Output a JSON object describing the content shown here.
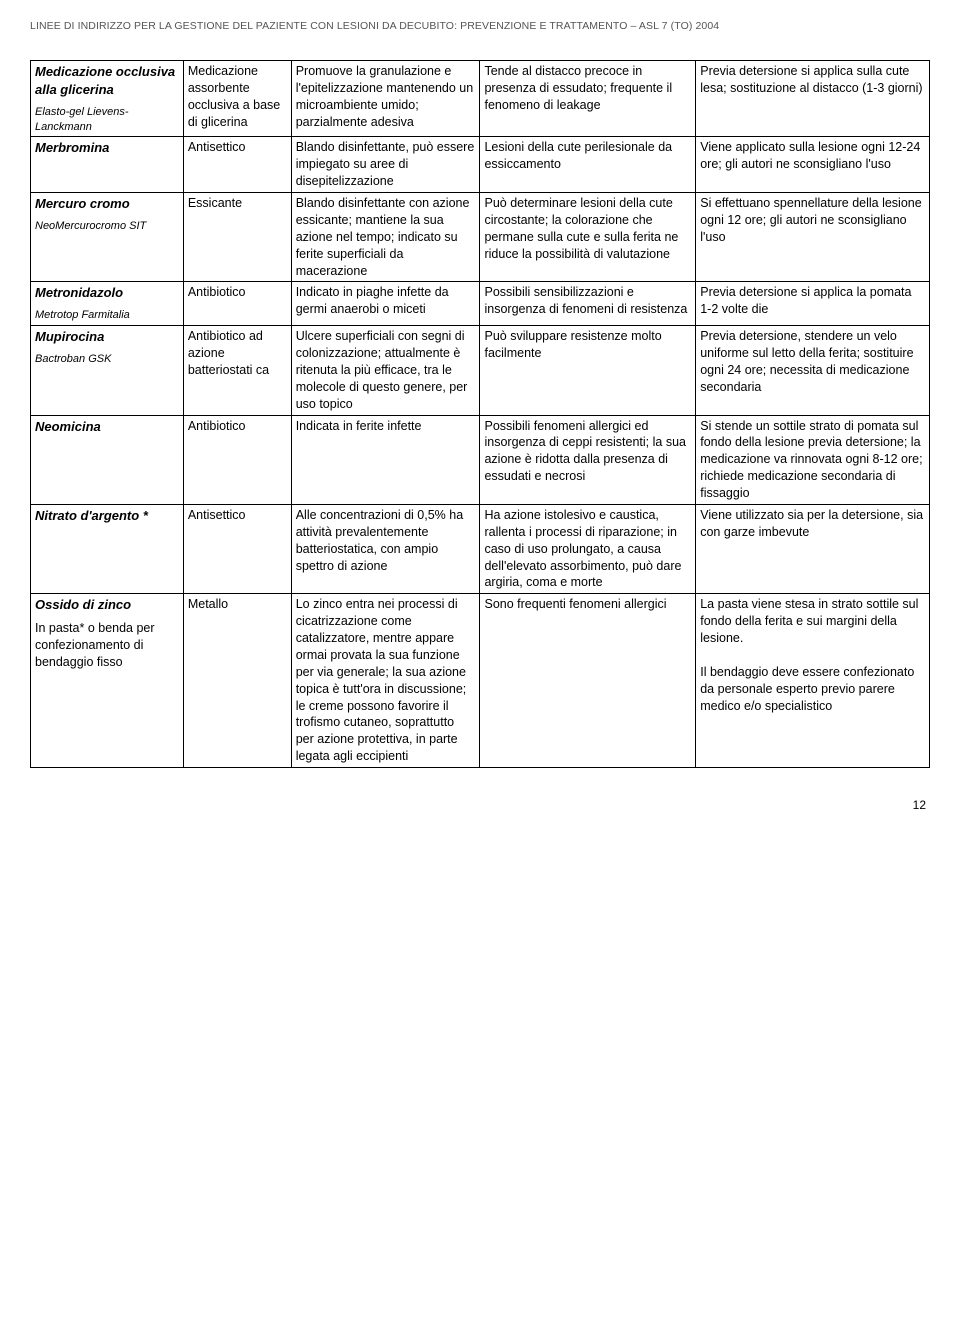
{
  "header": "LINEE DI INDIRIZZO PER LA GESTIONE DEL PAZIENTE CON LESIONI DA DECUBITO: PREVENZIONE E TRATTAMENTO – ASL 7 (TO) 2004",
  "page_number": "12",
  "colors": {
    "text": "#000000",
    "header_text": "#555555",
    "border": "#000000",
    "background": "#ffffff"
  },
  "typography": {
    "body_fontsize_pt": 12.5,
    "header_fontsize_pt": 10.5,
    "name_main_fontsize_pt": 13,
    "name_sub_fontsize_pt": 11,
    "line_height": 1.35
  },
  "layout": {
    "table_type": "table",
    "column_widths_pct": [
      17,
      12,
      21,
      24,
      26
    ]
  },
  "rows": [
    {
      "name_main": "Medicazione occlusiva alla glicerina",
      "name_sub": "Elasto-gel Lievens-Lanckmann",
      "name_note": "",
      "type": "Medicazione assorbente occlusiva a base di glicerina",
      "desc": "Promuove la granulazione e l'epitelizzazione mantenendo un microambiente umido; parzialmente adesiva",
      "adverse": "Tende al distacco precoce in presenza di essudato; frequente il fenomeno di leakage",
      "use": "Previa detersione si applica sulla cute lesa; sostituzione al distacco (1-3 giorni)"
    },
    {
      "name_main": "Merbromina",
      "name_sub": "",
      "name_note": "",
      "type": "Antisettico",
      "desc": "Blando disinfettante, può essere impiegato su aree di disepitelizzazione",
      "adverse": "Lesioni della cute perilesionale da essiccamento",
      "use": "Viene applicato sulla lesione ogni 12-24 ore; gli autori ne sconsigliano l'uso"
    },
    {
      "name_main": "Mercuro cromo",
      "name_sub": "NeoMercurocromo SIT",
      "name_note": "",
      "type": "Essicante",
      "desc": "Blando disinfettante con azione essicante; mantiene la sua azione nel tempo; indicato su ferite superficiali da macerazione",
      "adverse": "Può determinare lesioni della cute circostante; la colorazione che permane sulla cute e sulla ferita ne riduce la possibilità di valutazione",
      "use": "Si effettuano spennellature della lesione ogni 12 ore; gli autori ne sconsigliano l'uso"
    },
    {
      "name_main": "Metronidazolo",
      "name_sub": "Metrotop Farmitalia",
      "name_note": "",
      "type": "Antibiotico",
      "desc": "Indicato in piaghe infette da germi anaerobi o miceti",
      "adverse": "Possibili sensibilizzazioni e insorgenza di fenomeni di resistenza",
      "use": "Previa detersione si applica la pomata 1-2 volte die"
    },
    {
      "name_main": "Mupirocina",
      "name_sub": "Bactroban GSK",
      "name_note": "",
      "type": "Antibiotico ad azione batteriostati ca",
      "desc": "Ulcere superficiali con segni di colonizzazione; attualmente è ritenuta la più efficace, tra le molecole di questo genere, per uso topico",
      "adverse": "Può sviluppare resistenze molto facilmente",
      "use": "Previa detersione, stendere un velo uniforme sul letto della ferita; sostituire ogni 24 ore; necessita di medicazione secondaria"
    },
    {
      "name_main": "Neomicina",
      "name_sub": "",
      "name_note": "",
      "type": "Antibiotico",
      "desc": "Indicata in ferite infette",
      "adverse": "Possibili fenomeni allergici ed insorgenza di ceppi resistenti; la sua azione è ridotta dalla presenza di essudati e necrosi",
      "use": "Si stende un sottile strato di pomata sul fondo della lesione previa detersione; la medicazione va rinnovata ogni 8-12 ore; richiede medicazione secondaria di fissaggio"
    },
    {
      "name_main": "Nitrato d'argento *",
      "name_sub": "",
      "name_note": "",
      "type": "Antisettico",
      "desc": "Alle concentrazioni di 0,5% ha attività prevalentemente batteriostatica, con ampio spettro di azione",
      "adverse": "Ha azione istolesivo e caustica, rallenta i processi di riparazione; in caso di uso prolungato, a causa dell'elevato assorbimento, può dare argiria, coma e morte",
      "use": "Viene utilizzato sia per la detersione, sia con garze imbevute"
    },
    {
      "name_main": "Ossido di zinco",
      "name_sub": "",
      "name_note": "In pasta* o benda per confezionamento di bendaggio fisso",
      "type": "Metallo",
      "desc": "Lo zinco entra nei processi di cicatrizzazione come catalizzatore, mentre appare ormai provata la sua funzione per via generale; la sua azione topica è tutt'ora in discussione; le creme possono favorire il trofismo cutaneo, soprattutto per azione protettiva, in parte legata agli eccipienti",
      "adverse": "Sono frequenti fenomeni allergici",
      "use": "La pasta viene stesa in strato sottile sul fondo della ferita e sui margini della lesione.\n\nIl bendaggio deve essere confezionato da personale esperto previo parere medico e/o specialistico"
    }
  ]
}
